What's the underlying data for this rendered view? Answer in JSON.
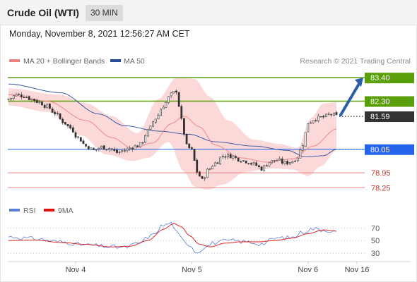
{
  "header": {
    "title": "Crude Oil (WTI)",
    "timeframe": "30 MIN"
  },
  "datetime": "Monday, November 8, 2021 12:56:27 AM CET",
  "legend": {
    "ma20_label": "MA 20 + Bollinger Bands",
    "ma50_label": "MA 50",
    "credit": "Research © 2021 Trading Central",
    "rsi_label": "RSI",
    "rsi_ma_label": "9MA"
  },
  "colors": {
    "bollinger_fill": "#fbd9d9",
    "ma20": "#f08080",
    "ma50": "#2a4a9a",
    "resistance": "#5a9e0a",
    "support": "#f08080",
    "pivot": "#2563eb",
    "last_price": "#333333",
    "arrow": "#2a5fa8",
    "rsi": "#5b7fd8",
    "rsi_ma": "#dd1111"
  },
  "chart_data": [
    {
      "type": "candlestick",
      "x_tick_labels": [
        "Nov 4",
        "Nov 5",
        "Nov 6",
        "Nov 16"
      ],
      "ylim": [
        77.8,
        83.8
      ],
      "levels": [
        {
          "value": 83.4,
          "label": "83.40",
          "kind": "resistance"
        },
        {
          "value": 82.3,
          "label": "82.30",
          "kind": "resistance"
        },
        {
          "value": 81.59,
          "label": "81.59",
          "kind": "last"
        },
        {
          "value": 80.05,
          "label": "80.05",
          "kind": "pivot"
        },
        {
          "value": 78.95,
          "label": "78.95",
          "kind": "support"
        },
        {
          "value": 78.25,
          "label": "78.25",
          "kind": "support"
        }
      ],
      "candle_close_anchors": [
        [
          0,
          82.4
        ],
        [
          3,
          82.6
        ],
        [
          6,
          82.55
        ],
        [
          9,
          82.4
        ],
        [
          12,
          82.25
        ],
        [
          15,
          82.05
        ],
        [
          18,
          81.75
        ],
        [
          21,
          81.35
        ],
        [
          24,
          81.05
        ],
        [
          27,
          80.6
        ],
        [
          30,
          80.2
        ],
        [
          33,
          80.0
        ],
        [
          36,
          80.15
        ],
        [
          39,
          80.1
        ],
        [
          42,
          79.9
        ],
        [
          45,
          80.0
        ],
        [
          48,
          80.15
        ],
        [
          51,
          80.25
        ],
        [
          54,
          80.9
        ],
        [
          57,
          81.5
        ],
        [
          60,
          82.1
        ],
        [
          63,
          82.6
        ],
        [
          65,
          82.8
        ],
        [
          67,
          81.4
        ],
        [
          69,
          80.2
        ],
        [
          71,
          80.0
        ],
        [
          73,
          79.0
        ],
        [
          75,
          78.6
        ],
        [
          77,
          79.05
        ],
        [
          80,
          79.4
        ],
        [
          83,
          79.75
        ],
        [
          86,
          79.75
        ],
        [
          89,
          79.6
        ],
        [
          92,
          79.5
        ],
        [
          95,
          79.35
        ],
        [
          98,
          79.15
        ],
        [
          101,
          79.45
        ],
        [
          104,
          79.55
        ],
        [
          107,
          79.4
        ],
        [
          110,
          79.5
        ],
        [
          112,
          79.7
        ],
        [
          114,
          80.3
        ],
        [
          116,
          81.3
        ],
        [
          119,
          81.5
        ],
        [
          122,
          81.55
        ],
        [
          125,
          81.7
        ],
        [
          127,
          81.59
        ]
      ],
      "ma20_anchors": [
        [
          0,
          82.6
        ],
        [
          15,
          82.3
        ],
        [
          30,
          81.4
        ],
        [
          40,
          80.6
        ],
        [
          48,
          80.1
        ],
        [
          56,
          80.35
        ],
        [
          63,
          81.25
        ],
        [
          68,
          81.6
        ],
        [
          74,
          81.1
        ],
        [
          80,
          80.25
        ],
        [
          90,
          79.65
        ],
        [
          100,
          79.45
        ],
        [
          110,
          79.6
        ],
        [
          118,
          80.2
        ],
        [
          127,
          81.0
        ]
      ],
      "ma50_anchors": [
        [
          0,
          83.1
        ],
        [
          20,
          82.7
        ],
        [
          35,
          81.7
        ],
        [
          45,
          81.15
        ],
        [
          58,
          80.9
        ],
        [
          70,
          80.75
        ],
        [
          80,
          80.4
        ],
        [
          95,
          80.2
        ],
        [
          108,
          80.0
        ],
        [
          115,
          79.7
        ],
        [
          122,
          79.75
        ],
        [
          127,
          80.05
        ]
      ],
      "bb_upper_anchors": [
        [
          0,
          82.9
        ],
        [
          20,
          82.6
        ],
        [
          30,
          82.2
        ],
        [
          40,
          81.6
        ],
        [
          50,
          80.8
        ],
        [
          58,
          82.4
        ],
        [
          65,
          83.4
        ],
        [
          72,
          83.35
        ],
        [
          78,
          82.5
        ],
        [
          85,
          81.4
        ],
        [
          95,
          80.5
        ],
        [
          105,
          80.3
        ],
        [
          112,
          80.1
        ],
        [
          117,
          81.5
        ],
        [
          122,
          82.2
        ],
        [
          127,
          82.25
        ]
      ],
      "bb_lower_anchors": [
        [
          0,
          82.1
        ],
        [
          15,
          81.8
        ],
        [
          28,
          80.7
        ],
        [
          38,
          79.8
        ],
        [
          48,
          79.5
        ],
        [
          54,
          79.65
        ],
        [
          62,
          80.4
        ],
        [
          68,
          79.0
        ],
        [
          72,
          78.3
        ],
        [
          77,
          78.15
        ],
        [
          83,
          78.4
        ],
        [
          92,
          79.0
        ],
        [
          102,
          79.15
        ],
        [
          110,
          79.1
        ],
        [
          116,
          78.8
        ],
        [
          121,
          79.25
        ],
        [
          127,
          80.0
        ]
      ]
    },
    {
      "type": "line",
      "title": "RSI",
      "ylim": [
        20,
        85
      ],
      "y_tick_labels": [
        "70",
        "50",
        "30"
      ],
      "series": [
        {
          "name": "RSI",
          "anchors": [
            [
              0,
              56
            ],
            [
              10,
              53
            ],
            [
              20,
              48
            ],
            [
              30,
              43
            ],
            [
              40,
              40
            ],
            [
              45,
              39
            ],
            [
              50,
              45
            ],
            [
              55,
              57
            ],
            [
              60,
              74
            ],
            [
              63,
              78
            ],
            [
              66,
              58
            ],
            [
              68,
              48
            ],
            [
              70,
              44
            ],
            [
              73,
              31
            ],
            [
              76,
              40
            ],
            [
              80,
              47
            ],
            [
              86,
              50
            ],
            [
              92,
              48
            ],
            [
              98,
              45
            ],
            [
              104,
              54
            ],
            [
              110,
              55
            ],
            [
              114,
              64
            ],
            [
              118,
              69
            ],
            [
              122,
              67
            ],
            [
              127,
              64
            ]
          ]
        },
        {
          "name": "9MA",
          "anchors": [
            [
              0,
              50
            ],
            [
              10,
              51
            ],
            [
              20,
              47
            ],
            [
              30,
              44
            ],
            [
              40,
              40
            ],
            [
              47,
              41
            ],
            [
              54,
              50
            ],
            [
              60,
              68
            ],
            [
              64,
              77
            ],
            [
              67,
              72
            ],
            [
              70,
              58
            ],
            [
              74,
              44
            ],
            [
              78,
              40
            ],
            [
              84,
              46
            ],
            [
              90,
              48
            ],
            [
              97,
              48
            ],
            [
              103,
              50
            ],
            [
              110,
              54
            ],
            [
              116,
              61
            ],
            [
              122,
              67
            ],
            [
              127,
              65
            ]
          ]
        }
      ]
    }
  ]
}
